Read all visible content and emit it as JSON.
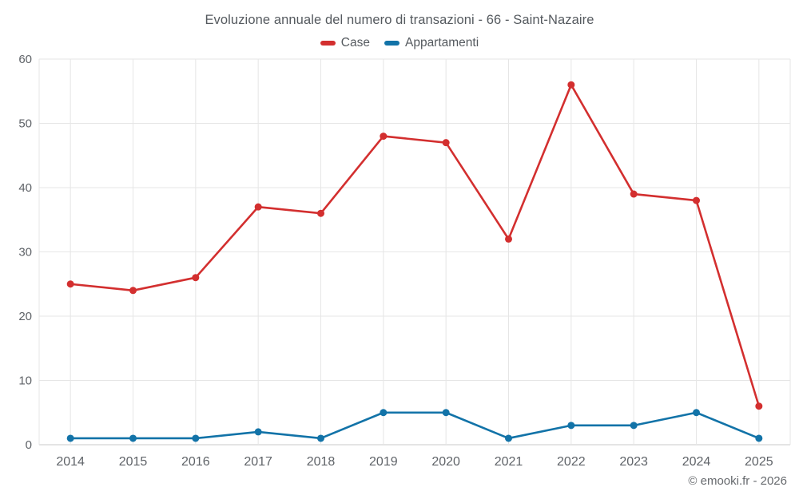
{
  "title": "Evoluzione annuale del numero di transazioni - 66 - Saint-Nazaire",
  "copyright": "© emooki.fr - 2026",
  "colors": {
    "case_red": "#d32f2f",
    "appartamenti_blue": "#1273a8",
    "grid": "#e6e6e6",
    "axis_line": "#c9c9c9",
    "tick_text": "#5f6368",
    "title_text": "#555a5f"
  },
  "chart_data": {
    "type": "line",
    "title": "Evoluzione annuale del numero di transazioni - 66 - Saint-Nazaire",
    "categories": [
      "2014",
      "2015",
      "2016",
      "2017",
      "2018",
      "2019",
      "2020",
      "2021",
      "2022",
      "2023",
      "2024",
      "2025"
    ],
    "series": [
      {
        "name": "Case",
        "color": "#d32f2f",
        "values": [
          25,
          24,
          26,
          37,
          36,
          48,
          47,
          32,
          56,
          39,
          38,
          6
        ]
      },
      {
        "name": "Appartamenti",
        "color": "#1273a8",
        "values": [
          1,
          1,
          1,
          2,
          1,
          5,
          5,
          1,
          3,
          3,
          5,
          1
        ]
      }
    ],
    "xlabel": "",
    "ylabel": "",
    "ylim": [
      0,
      60
    ],
    "yticks": [
      0,
      10,
      20,
      30,
      40,
      50,
      60
    ],
    "grid": true,
    "legend_position": "top",
    "markers": true
  }
}
